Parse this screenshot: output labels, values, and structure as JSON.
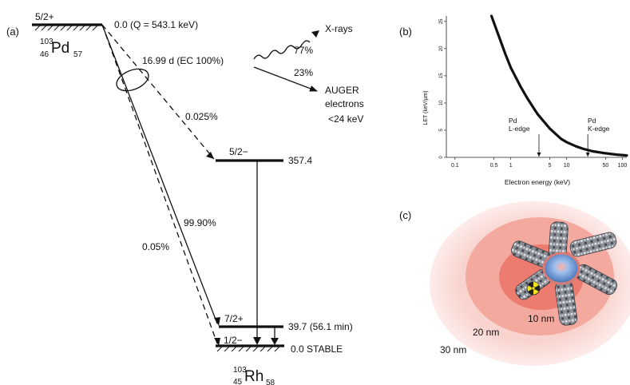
{
  "panel_a": {
    "label": "(a)",
    "parent": {
      "mass": "103",
      "z": "46",
      "symbol": "Pd",
      "n": "57"
    },
    "daughter": {
      "mass": "103",
      "z": "45",
      "symbol": "Rh",
      "n": "58"
    },
    "levels": {
      "ground_spin": "5/2+",
      "ground_energy": "0.0 (Q = 543.1 keV)",
      "l357_spin": "5/2−",
      "l357_energy": "357.4",
      "l39_spin": "7/2+",
      "l39_energy": "39.7 (56.1 min)",
      "l0_spin": "1/2−",
      "l0_energy": "0.0  STABLE"
    },
    "halflife": "16.99 d (EC 100%)",
    "branches": {
      "b0025": "0.025%",
      "b9990": "99.90%",
      "b005": "0.05%"
    },
    "emission": {
      "xrays": "X-rays",
      "xrays_pct": "77%",
      "auger_pct": "23%",
      "auger1": "AUGER",
      "auger2": "electrons",
      "auger3": "<24 keV"
    }
  },
  "panel_b": {
    "label": "(b)",
    "ylabel": "LET (keV/µm)",
    "xlabel": "Electron energy (keV)",
    "xticks": [
      "0.1",
      "0.5",
      "1",
      "5",
      "10",
      "50",
      "100"
    ],
    "yticks": [
      "0",
      "5",
      "10",
      "15",
      "20",
      "25"
    ],
    "edge_l1": "Pd",
    "edge_l2": "L-edge",
    "edge_k1": "Pd",
    "edge_k2": "K-edge"
  },
  "panel_c": {
    "label": "(c)",
    "r10": "10 nm",
    "r20": "20 nm",
    "r30": "30 nm"
  },
  "colors": {
    "outer_ring": "#f9d8d3",
    "middle_ring": "#f4a99e",
    "inner_ring": "#ec7b70",
    "core": "#5b8fd0",
    "radiation_symbol": "#f2e21c"
  },
  "chart_data": {
    "type": "line",
    "xlabel": "Electron energy (keV)",
    "ylabel": "LET (keV/µm)",
    "x_scale": "log",
    "xlim": [
      0.07,
      120
    ],
    "ylim": [
      0,
      26
    ],
    "xticks": [
      0.1,
      0.5,
      1,
      5,
      10,
      50,
      100
    ],
    "yticks": [
      0,
      5,
      10,
      15,
      20,
      25
    ],
    "series": [
      {
        "x": [
          0.45,
          0.6,
          0.8,
          1,
          1.5,
          2,
          3,
          5,
          8,
          10,
          15,
          20,
          30,
          50,
          80,
          120
        ],
        "y": [
          26,
          22.5,
          19,
          16.5,
          13,
          10.8,
          8,
          5.3,
          3.4,
          2.8,
          2.0,
          1.55,
          1.1,
          0.75,
          0.5,
          0.35
        ]
      }
    ],
    "annotations": [
      {
        "text": "Pd L-edge",
        "x": 3.2
      },
      {
        "text": "Pd K-edge",
        "x": 24
      }
    ]
  }
}
